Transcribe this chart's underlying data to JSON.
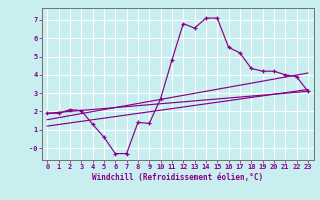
{
  "xlabel": "Windchill (Refroidissement éolien,°C)",
  "background_color": "#c8eef0",
  "grid_color": "#ffffff",
  "line_color": "#880088",
  "xlim": [
    -0.5,
    23.5
  ],
  "ylim": [
    -0.65,
    7.65
  ],
  "xticks": [
    0,
    1,
    2,
    3,
    4,
    5,
    6,
    7,
    8,
    9,
    10,
    11,
    12,
    13,
    14,
    15,
    16,
    17,
    18,
    19,
    20,
    21,
    22,
    23
  ],
  "yticks": [
    0,
    1,
    2,
    3,
    4,
    5,
    6,
    7
  ],
  "ytick_labels": [
    "-0",
    "1",
    "2",
    "3",
    "4",
    "5",
    "6",
    "7"
  ],
  "curve_main_x": [
    0,
    1,
    2,
    3,
    4,
    5,
    6,
    7,
    8,
    9,
    10,
    11,
    12,
    13,
    14,
    15,
    16,
    17,
    18,
    19,
    20,
    21,
    22,
    23
  ],
  "curve_main_y": [
    1.9,
    1.9,
    2.1,
    2.05,
    1.3,
    0.6,
    -0.3,
    -0.3,
    1.4,
    1.35,
    2.7,
    4.8,
    6.8,
    6.55,
    7.1,
    7.1,
    5.5,
    5.2,
    4.35,
    4.2,
    4.2,
    4.0,
    3.9,
    3.1
  ],
  "line1_x": [
    0,
    23
  ],
  "line1_y": [
    1.9,
    3.1
  ],
  "line2_x": [
    0,
    23
  ],
  "line2_y": [
    1.2,
    3.2
  ],
  "line3_x": [
    0,
    23
  ],
  "line3_y": [
    1.55,
    4.1
  ],
  "tick_fontsize": 5.0,
  "xlabel_fontsize": 5.5
}
